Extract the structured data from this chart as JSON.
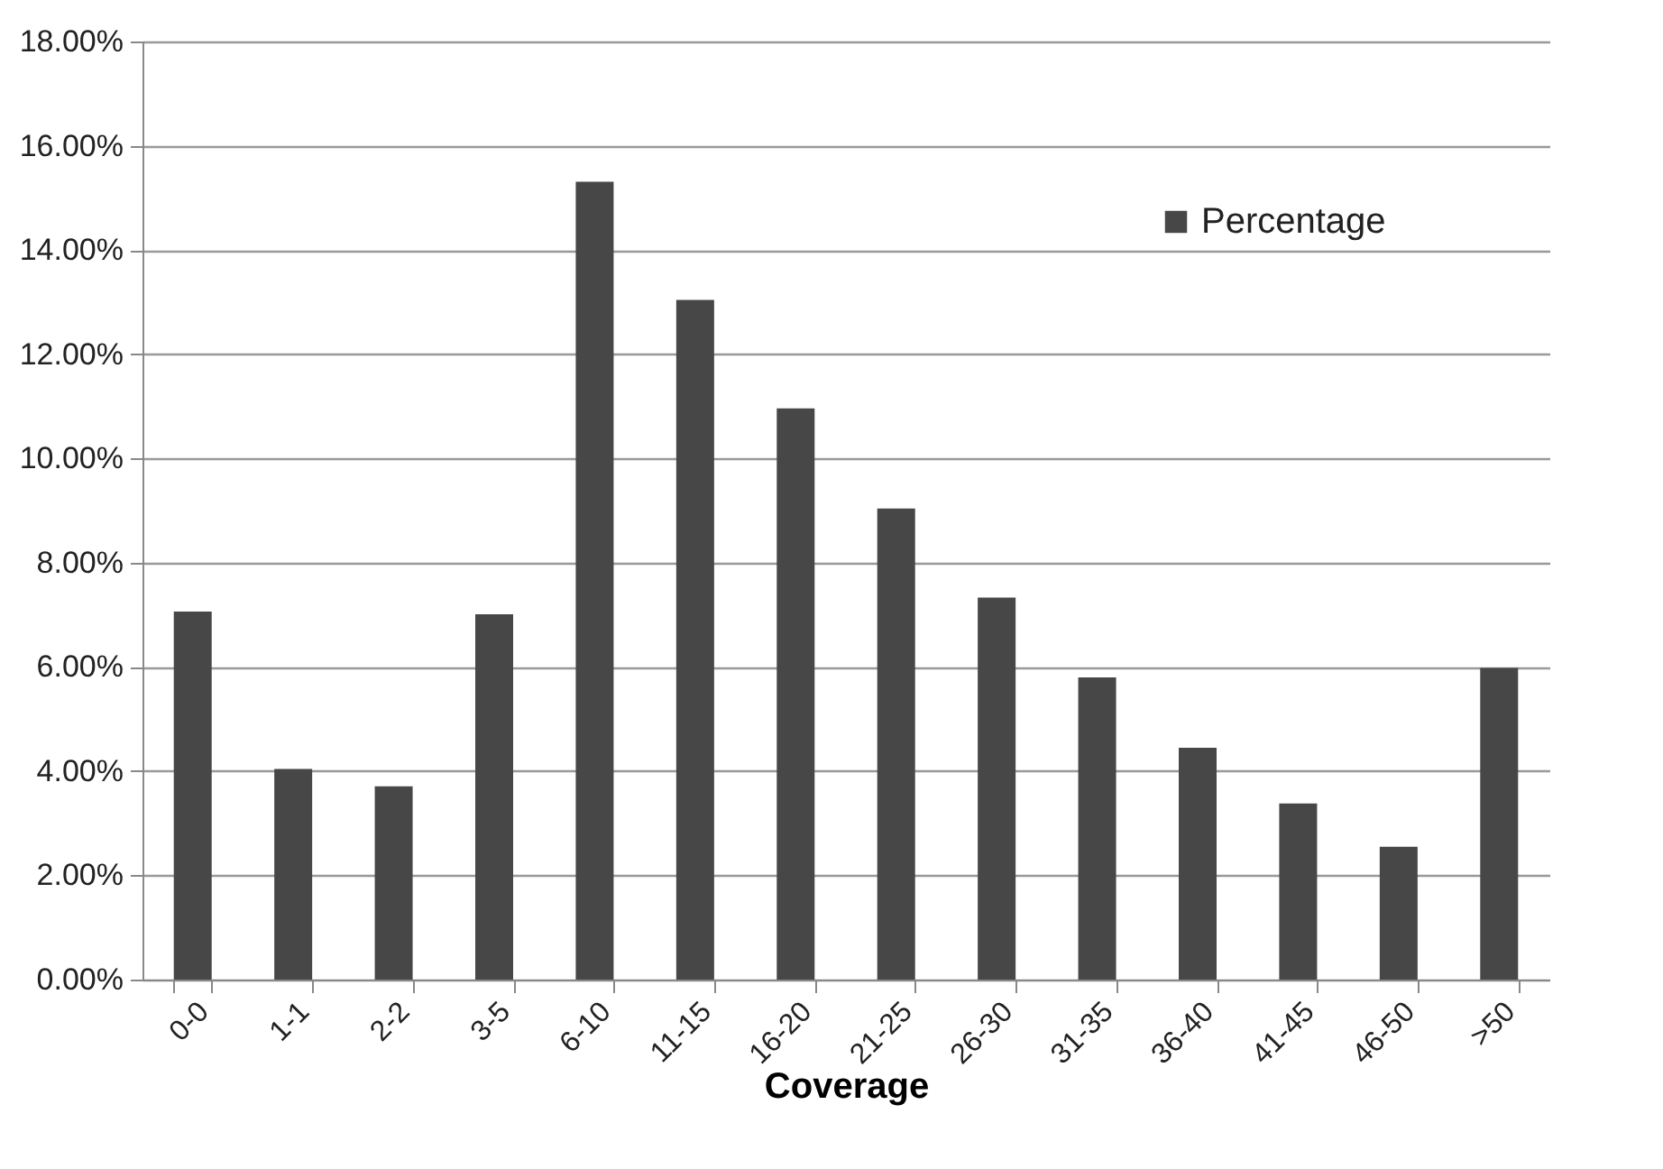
{
  "chart_data": {
    "type": "bar",
    "xlabel": "Coverage",
    "categories": [
      "0-0",
      "1-1",
      "2-2",
      "3-5",
      "6-10",
      "11-15",
      "16-20",
      "21-25",
      "26-30",
      "31-35",
      "36-40",
      "41-45",
      "46-50",
      ">50"
    ],
    "series": [
      {
        "name": "Percentage",
        "color": "#474747",
        "values": [
          7.06,
          4.04,
          3.71,
          7.01,
          15.31,
          13.04,
          10.96,
          9.04,
          7.33,
          5.8,
          4.45,
          3.38,
          2.55,
          5.98
        ]
      }
    ],
    "ylim": [
      0,
      18
    ],
    "yticks": [
      {
        "value": 0,
        "label": "0.00%"
      },
      {
        "value": 2,
        "label": "2.00%"
      },
      {
        "value": 4,
        "label": "4.00%"
      },
      {
        "value": 6,
        "label": "6.00%"
      },
      {
        "value": 8,
        "label": "8.00%"
      },
      {
        "value": 10,
        "label": "10.00%"
      },
      {
        "value": 12,
        "label": "12.00%"
      },
      {
        "value": 14,
        "label": "14.00%"
      },
      {
        "value": 16,
        "label": "16.00%"
      },
      {
        "value": 18,
        "label": "18.00%"
      }
    ],
    "grid": "y",
    "legend": "top right"
  }
}
